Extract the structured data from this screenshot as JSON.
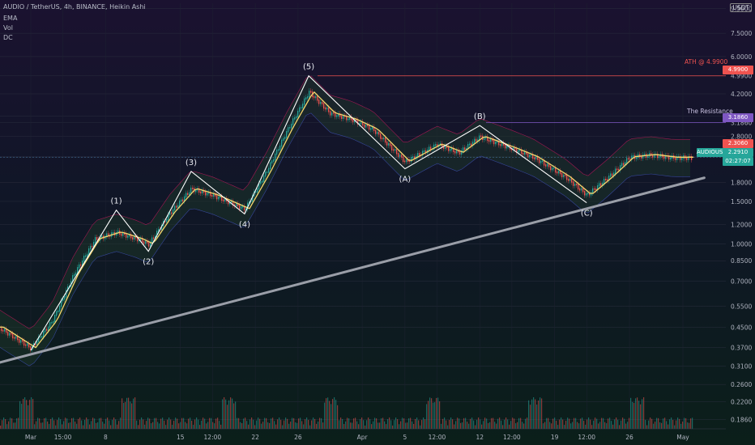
{
  "header": {
    "title": "AUDIO / TetherUS, 4h, BINANCE, Heikin Ashi",
    "indicators": [
      "EMA",
      "Vol",
      "DC"
    ]
  },
  "axis": {
    "currency": "USDT",
    "right_ticks": [
      "9.5000",
      "7.5000",
      "6.0000",
      "4.9900",
      "4.2000",
      "3.4000",
      "3.1860",
      "2.8000",
      "2.3060",
      "2.2910",
      "1.8000",
      "1.5000",
      "1.2000",
      "1.0000",
      "0.8500",
      "0.7000",
      "0.5500",
      "0.4500",
      "0.3700",
      "0.3100",
      "0.2600",
      "0.2200",
      "0.1860"
    ],
    "x_ticks": [
      "Mar",
      "15:00",
      "8",
      "15",
      "12:00",
      "22",
      "26",
      "Apr",
      "5",
      "12:00",
      "12",
      "12:00",
      "19",
      "12:00",
      "26",
      "May"
    ]
  },
  "annotations": {
    "ath_label": "ATH @ 4.9900",
    "ath_value": "4.9900",
    "resistance_label": "The Resistance",
    "resistance_value": "3.1860",
    "level_value": "2.3060",
    "current_symbol": "AUDIOUSDT",
    "current_value": "2.2910",
    "countdown": "02:27:07",
    "waves": [
      "(1)",
      "(2)",
      "(3)",
      "(4)",
      "(5)",
      "(A)",
      "(B)",
      "(C)"
    ]
  },
  "colors": {
    "background": "#0d0f1a",
    "bull": "#26a69a",
    "bear": "#ef5350",
    "ema": "#f5d76e",
    "ath_line": "#ef5350",
    "resistance_line": "#7e57c2",
    "trendline": "#9a9ea8",
    "wave_line": "#ffffff"
  },
  "chart_data": {
    "type": "line",
    "scale": "log",
    "y_unit": "USDT",
    "ylim": [
      0.17,
      10.0
    ],
    "waves": [
      {
        "label": "(1)",
        "date": "Mar 9",
        "price": 1.38
      },
      {
        "label": "(2)",
        "date": "Mar 12",
        "price": 0.93
      },
      {
        "label": "(3)",
        "date": "Mar 16",
        "price": 2.0
      },
      {
        "label": "(4)",
        "date": "Mar 21",
        "price": 1.33
      },
      {
        "label": "(5)",
        "date": "Mar 27",
        "price": 4.99
      },
      {
        "label": "(A)",
        "date": "Apr 5",
        "price": 2.05
      },
      {
        "label": "(B)",
        "date": "Apr 12",
        "price": 3.1
      },
      {
        "label": "(C)",
        "date": "Apr 22",
        "price": 1.48
      }
    ],
    "path": [
      {
        "date": "Mar 1",
        "price": 0.36
      },
      {
        "date": "Mar 9",
        "price": 1.38
      },
      {
        "date": "Mar 12",
        "price": 0.93
      },
      {
        "date": "Mar 16",
        "price": 2.0
      },
      {
        "date": "Mar 21",
        "price": 1.33
      },
      {
        "date": "Mar 27",
        "price": 4.99
      },
      {
        "date": "Apr 5",
        "price": 2.05
      },
      {
        "date": "Apr 12",
        "price": 3.1
      },
      {
        "date": "Apr 22",
        "price": 1.48
      }
    ],
    "price_series": [
      {
        "date": "Feb 26",
        "price": 0.45
      },
      {
        "date": "Mar 1",
        "price": 0.37
      },
      {
        "date": "Mar 3",
        "price": 0.48
      },
      {
        "date": "Mar 5",
        "price": 0.75
      },
      {
        "date": "Mar 7",
        "price": 1.05
      },
      {
        "date": "Mar 9",
        "price": 1.12
      },
      {
        "date": "Mar 11",
        "price": 1.05
      },
      {
        "date": "Mar 12",
        "price": 1.0
      },
      {
        "date": "Mar 14",
        "price": 1.35
      },
      {
        "date": "Mar 16",
        "price": 1.7
      },
      {
        "date": "Mar 18",
        "price": 1.6
      },
      {
        "date": "Mar 21",
        "price": 1.4
      },
      {
        "date": "Mar 23",
        "price": 2.0
      },
      {
        "date": "Mar 25",
        "price": 3.0
      },
      {
        "date": "Mar 27",
        "price": 4.3
      },
      {
        "date": "Mar 29",
        "price": 3.5
      },
      {
        "date": "Mar 31",
        "price": 3.3
      },
      {
        "date": "Apr 2",
        "price": 3.0
      },
      {
        "date": "Apr 5",
        "price": 2.2
      },
      {
        "date": "Apr 8",
        "price": 2.6
      },
      {
        "date": "Apr 10",
        "price": 2.4
      },
      {
        "date": "Apr 12",
        "price": 2.8
      },
      {
        "date": "Apr 15",
        "price": 2.5
      },
      {
        "date": "Apr 17",
        "price": 2.3
      },
      {
        "date": "Apr 20",
        "price": 1.9
      },
      {
        "date": "Apr 22",
        "price": 1.6
      },
      {
        "date": "Apr 24",
        "price": 1.9
      },
      {
        "date": "Apr 26",
        "price": 2.3
      },
      {
        "date": "Apr 28",
        "price": 2.35
      },
      {
        "date": "Apr 30",
        "price": 2.29
      }
    ],
    "horizontal_levels": [
      {
        "label": "ATH @ 4.9900",
        "price": 4.99
      },
      {
        "label": "The Resistance",
        "price": 3.186
      }
    ],
    "trendline": [
      {
        "date": "Feb 26",
        "price": 0.32
      },
      {
        "date": "May 3",
        "price": 1.88
      }
    ]
  }
}
